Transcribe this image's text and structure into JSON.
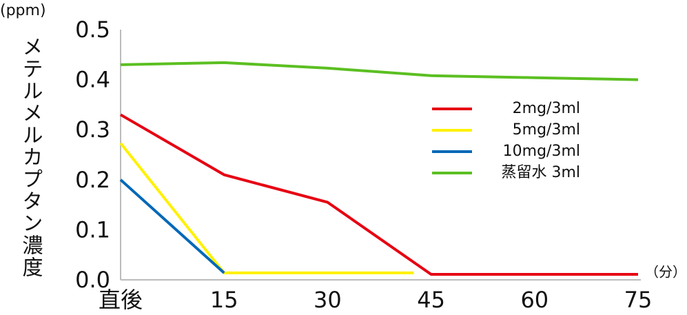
{
  "chart_data": {
    "type": "line",
    "y_unit": "(ppm)",
    "x_unit": "（分）",
    "y_label": "メテルメルカプタン濃度",
    "xlim": [
      0,
      75
    ],
    "xticks": [
      {
        "value": 0,
        "label": "直後"
      },
      15,
      30,
      45,
      60,
      75
    ],
    "ylim": [
      0,
      0.5
    ],
    "yticks": [
      {
        "value": 0,
        "label": "0.0"
      },
      0.1,
      0.2,
      0.3,
      0.4,
      0.5
    ],
    "grid": false,
    "legend": "right",
    "series": [
      {
        "name": "2mg/3ml",
        "color": "#e60012",
        "x": [
          0,
          15,
          30,
          45,
          75
        ],
        "values": [
          0.33,
          0.21,
          0.155,
          0.011,
          0.011
        ]
      },
      {
        "name": "5mg/3ml",
        "color": "#fff100",
        "x": [
          0,
          15,
          30,
          42.5
        ],
        "values": [
          0.273,
          0.014,
          0.014,
          0.014
        ]
      },
      {
        "name": "10mg/3ml",
        "color": "#0068b7",
        "x": [
          0,
          15
        ],
        "values": [
          0.2,
          0.014
        ]
      },
      {
        "name": "蒸留水 3ml",
        "color": "#5bbf21",
        "x": [
          0,
          15,
          30,
          45,
          60,
          75
        ],
        "values": [
          0.43,
          0.434,
          0.423,
          0.408,
          0.404,
          0.4
        ]
      }
    ]
  }
}
